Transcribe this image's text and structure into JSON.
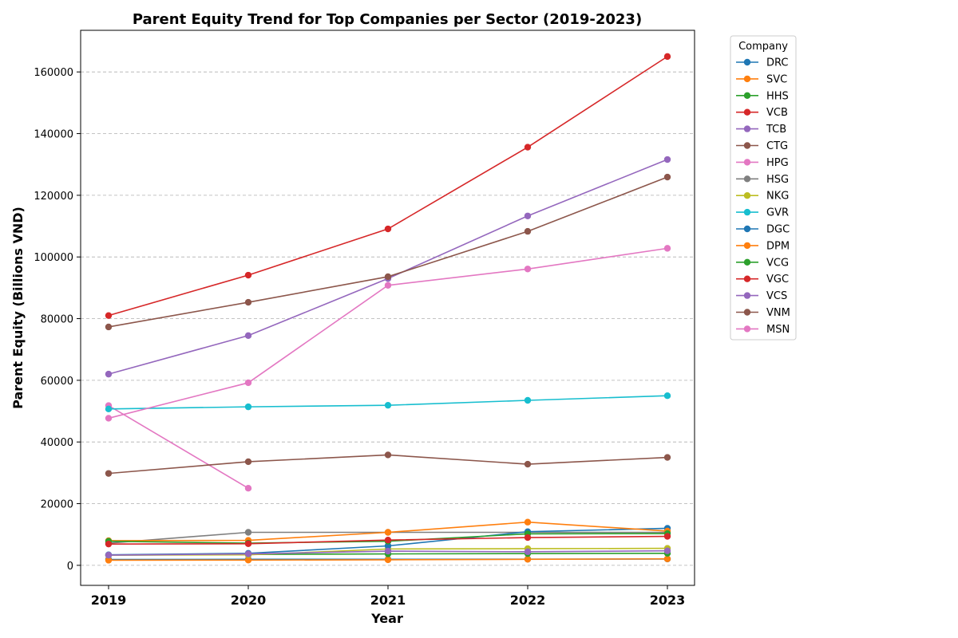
{
  "chart_data": {
    "type": "line",
    "title": "Parent Equity Trend for Top Companies per Sector (2019-2023)",
    "xlabel": "Year",
    "ylabel": "Parent Equity (Billions VND)",
    "categories": [
      "2019",
      "2020",
      "2021",
      "2022",
      "2023"
    ],
    "ylim": [
      -6500,
      173500
    ],
    "yticks": [
      0,
      20000,
      40000,
      60000,
      80000,
      100000,
      120000,
      140000,
      160000
    ],
    "grid": "y-dashed",
    "legend": {
      "title": "Company",
      "placement": "outside-right"
    },
    "series": [
      {
        "name": "DRC",
        "color": "#1f77b4",
        "values": [
          1900,
          1950,
          1950,
          2000,
          2050
        ]
      },
      {
        "name": "SVC",
        "color": "#ff7f0e",
        "values": [
          1650,
          1700,
          1800,
          1950,
          2100
        ]
      },
      {
        "name": "HHS",
        "color": "#2ca02c",
        "values": [
          3300,
          3550,
          3700,
          3800,
          3900
        ]
      },
      {
        "name": "VCB",
        "color": "#d62728",
        "values": [
          81000,
          94100,
          109100,
          135600,
          165000
        ]
      },
      {
        "name": "TCB",
        "color": "#9467bd",
        "values": [
          62000,
          74500,
          93000,
          113300,
          131600
        ]
      },
      {
        "name": "CTG",
        "color": "#8c564b",
        "values": [
          77300,
          85300,
          93600,
          108300,
          125900
        ]
      },
      {
        "name": "HPG",
        "color": "#e377c2",
        "values": [
          51800,
          25000,
          null,
          null,
          null
        ]
      },
      {
        "name": "HSG",
        "color": "#7f7f7f",
        "values": [
          7200,
          10700,
          10700,
          10700,
          10700
        ]
      },
      {
        "name": "NKG",
        "color": "#bcbd22",
        "values": [
          3300,
          3400,
          5300,
          5400,
          5500
        ]
      },
      {
        "name": "GVR",
        "color": "#17becf",
        "values": [
          50700,
          51400,
          51900,
          53500,
          55000
        ]
      },
      {
        "name": "DGC",
        "color": "#1f77b4",
        "values": [
          3400,
          3900,
          6300,
          10900,
          12000
        ]
      },
      {
        "name": "DPM",
        "color": "#ff7f0e",
        "values": [
          8000,
          8100,
          10700,
          14000,
          11100
        ]
      },
      {
        "name": "VCG",
        "color": "#2ca02c",
        "values": [
          7800,
          7200,
          7800,
          10200,
          10300
        ]
      },
      {
        "name": "VGC",
        "color": "#d62728",
        "values": [
          6900,
          7000,
          8200,
          9000,
          9400
        ]
      },
      {
        "name": "VCS",
        "color": "#9467bd",
        "values": [
          3300,
          3700,
          4600,
          4400,
          4700
        ]
      },
      {
        "name": "VNM",
        "color": "#8c564b",
        "values": [
          29800,
          33600,
          35800,
          32800,
          35000
        ]
      },
      {
        "name": "MSN",
        "color": "#e377c2",
        "values": [
          47700,
          59200,
          90800,
          96100,
          102800
        ]
      }
    ]
  }
}
